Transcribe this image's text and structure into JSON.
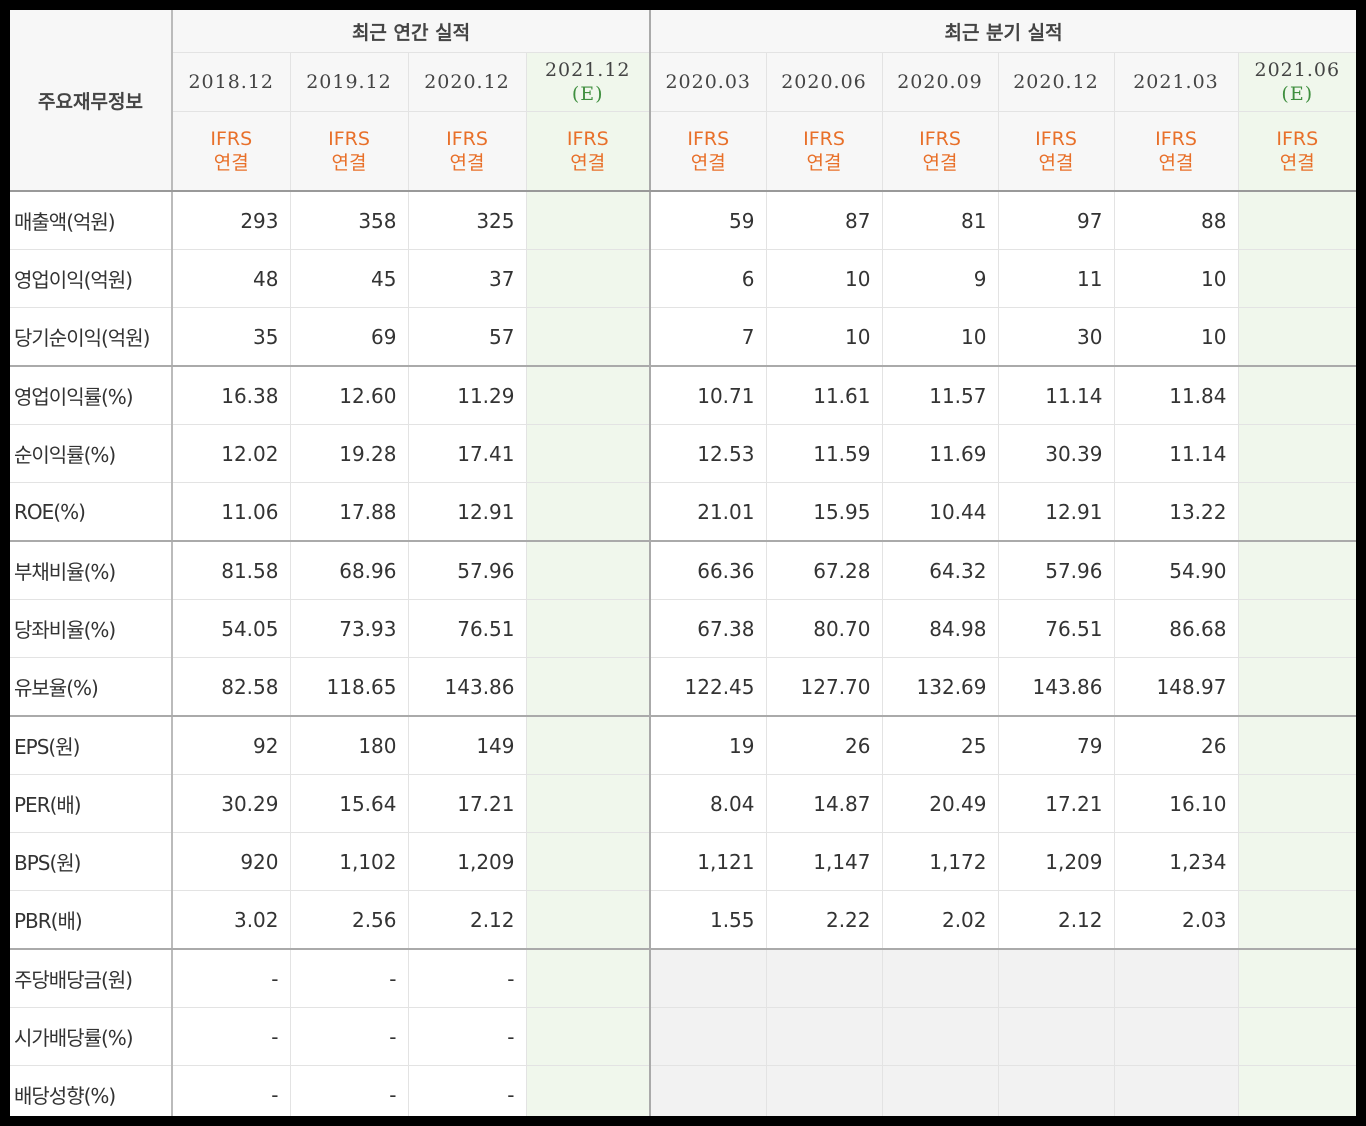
{
  "corner_label": "주요재무정보",
  "annual_header": "최근 연간 실적",
  "quarter_header": "최근 분기 실적",
  "periods": [
    {
      "label": "2018.12",
      "est": "",
      "basis_top": "IFRS",
      "basis_bottom": "연결"
    },
    {
      "label": "2019.12",
      "est": "",
      "basis_top": "IFRS",
      "basis_bottom": "연결"
    },
    {
      "label": "2020.12",
      "est": "",
      "basis_top": "IFRS",
      "basis_bottom": "연결"
    },
    {
      "label": "2021.12",
      "est": "(E)",
      "basis_top": "IFRS",
      "basis_bottom": "연결"
    },
    {
      "label": "2020.03",
      "est": "",
      "basis_top": "IFRS",
      "basis_bottom": "연결"
    },
    {
      "label": "2020.06",
      "est": "",
      "basis_top": "IFRS",
      "basis_bottom": "연결"
    },
    {
      "label": "2020.09",
      "est": "",
      "basis_top": "IFRS",
      "basis_bottom": "연결"
    },
    {
      "label": "2020.12",
      "est": "",
      "basis_top": "IFRS",
      "basis_bottom": "연결"
    },
    {
      "label": "2021.03",
      "est": "",
      "basis_top": "IFRS",
      "basis_bottom": "연결"
    },
    {
      "label": "2021.06",
      "est": "(E)",
      "basis_top": "IFRS",
      "basis_bottom": "연결"
    }
  ],
  "rows": [
    {
      "label": "매출액(억원)",
      "values": [
        "293",
        "358",
        "325",
        "",
        "59",
        "87",
        "81",
        "97",
        "88",
        ""
      ]
    },
    {
      "label": "영업이익(억원)",
      "values": [
        "48",
        "45",
        "37",
        "",
        "6",
        "10",
        "9",
        "11",
        "10",
        ""
      ]
    },
    {
      "label": "당기순이익(억원)",
      "values": [
        "35",
        "69",
        "57",
        "",
        "7",
        "10",
        "10",
        "30",
        "10",
        ""
      ]
    },
    {
      "label": "영업이익률(%)",
      "values": [
        "16.38",
        "12.60",
        "11.29",
        "",
        "10.71",
        "11.61",
        "11.57",
        "11.14",
        "11.84",
        ""
      ]
    },
    {
      "label": "순이익률(%)",
      "values": [
        "12.02",
        "19.28",
        "17.41",
        "",
        "12.53",
        "11.59",
        "11.69",
        "30.39",
        "11.14",
        ""
      ]
    },
    {
      "label": "ROE(%)",
      "values": [
        "11.06",
        "17.88",
        "12.91",
        "",
        "21.01",
        "15.95",
        "10.44",
        "12.91",
        "13.22",
        ""
      ]
    },
    {
      "label": "부채비율(%)",
      "values": [
        "81.58",
        "68.96",
        "57.96",
        "",
        "66.36",
        "67.28",
        "64.32",
        "57.96",
        "54.90",
        ""
      ]
    },
    {
      "label": "당좌비율(%)",
      "values": [
        "54.05",
        "73.93",
        "76.51",
        "",
        "67.38",
        "80.70",
        "84.98",
        "76.51",
        "86.68",
        ""
      ]
    },
    {
      "label": "유보율(%)",
      "values": [
        "82.58",
        "118.65",
        "143.86",
        "",
        "122.45",
        "127.70",
        "132.69",
        "143.86",
        "148.97",
        ""
      ]
    },
    {
      "label": "EPS(원)",
      "values": [
        "92",
        "180",
        "149",
        "",
        "19",
        "26",
        "25",
        "79",
        "26",
        ""
      ]
    },
    {
      "label": "PER(배)",
      "values": [
        "30.29",
        "15.64",
        "17.21",
        "",
        "8.04",
        "14.87",
        "20.49",
        "17.21",
        "16.10",
        ""
      ]
    },
    {
      "label": "BPS(원)",
      "values": [
        "920",
        "1,102",
        "1,209",
        "",
        "1,121",
        "1,147",
        "1,172",
        "1,209",
        "1,234",
        ""
      ]
    },
    {
      "label": "PBR(배)",
      "values": [
        "3.02",
        "2.56",
        "2.12",
        "",
        "1.55",
        "2.22",
        "2.02",
        "2.12",
        "2.03",
        ""
      ]
    },
    {
      "label": "주당배당금(원)",
      "values": [
        "-",
        "-",
        "-",
        "",
        "",
        "",
        "",
        "",
        "",
        ""
      ]
    },
    {
      "label": "시가배당률(%)",
      "values": [
        "-",
        "-",
        "-",
        "",
        "",
        "",
        "",
        "",
        "",
        ""
      ]
    },
    {
      "label": "배당성향(%)",
      "values": [
        "-",
        "-",
        "-",
        "",
        "",
        "",
        "",
        "",
        "",
        ""
      ]
    }
  ],
  "colors": {
    "basis": "#e8702a",
    "estimate_mark": "#3f8f3f",
    "estimate_bg": "#f0f7ec",
    "header_bg": "#f7f7f7"
  }
}
